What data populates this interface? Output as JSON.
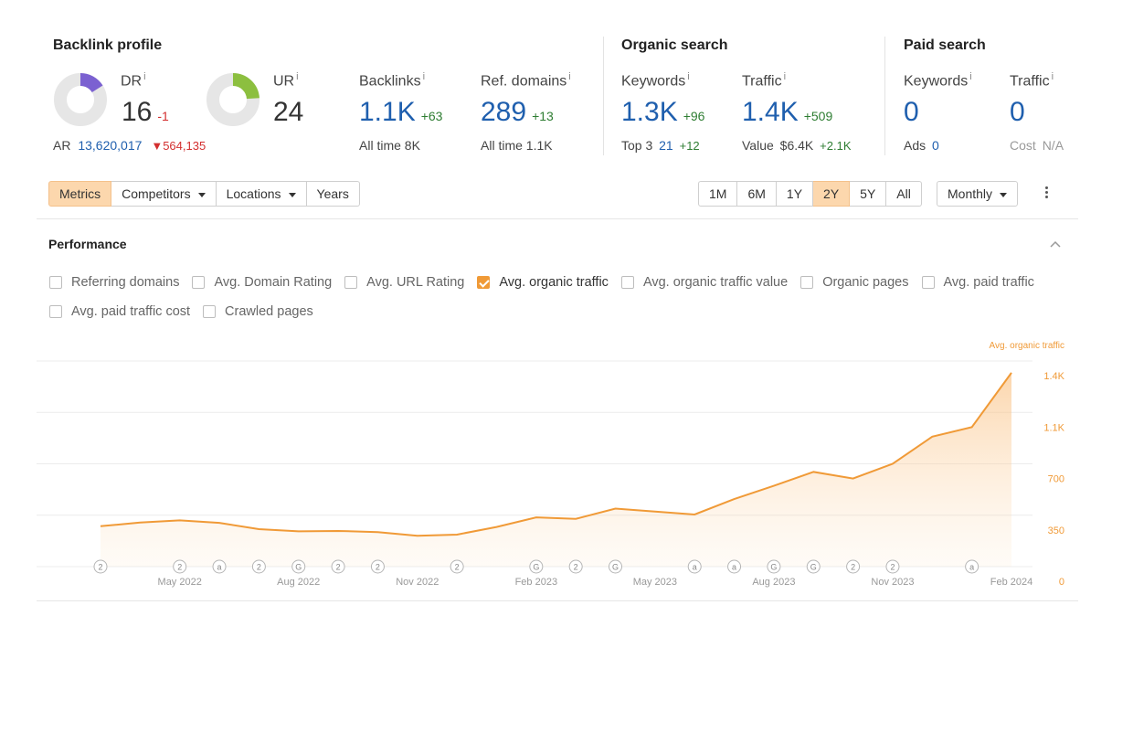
{
  "backlink_profile": {
    "title": "Backlink profile",
    "dr": {
      "label": "DR",
      "value": "16",
      "delta": "-1",
      "fill": 0.16
    },
    "ur": {
      "label": "UR",
      "value": "24",
      "fill": 0.24
    },
    "ar": {
      "label": "AR",
      "value": "13,620,017",
      "delta": "564,135"
    },
    "backlinks": {
      "label": "Backlinks",
      "value": "1.1K",
      "delta": "+63",
      "sub_label": "All time",
      "sub_value": "8K"
    },
    "ref_domains": {
      "label": "Ref. domains",
      "value": "289",
      "delta": "+13",
      "sub_label": "All time",
      "sub_value": "1.1K"
    }
  },
  "organic_search": {
    "title": "Organic search",
    "keywords": {
      "label": "Keywords",
      "value": "1.3K",
      "delta": "+96",
      "sub_label": "Top 3",
      "sub_value": "21",
      "sub_delta": "+12"
    },
    "traffic": {
      "label": "Traffic",
      "value": "1.4K",
      "delta": "+509",
      "sub_label": "Value",
      "sub_value": "$6.4K",
      "sub_delta": "+2.1K"
    }
  },
  "paid_search": {
    "title": "Paid search",
    "keywords": {
      "label": "Keywords",
      "value": "0",
      "sub_label": "Ads",
      "sub_value": "0"
    },
    "traffic": {
      "label": "Traffic",
      "value": "0",
      "sub_label": "Cost",
      "sub_value": "N/A"
    }
  },
  "info_mark": "i",
  "toolbar": {
    "tabs": [
      {
        "label": "Metrics",
        "active": true,
        "dropdown": false
      },
      {
        "label": "Competitors",
        "active": false,
        "dropdown": true
      },
      {
        "label": "Locations",
        "active": false,
        "dropdown": true
      },
      {
        "label": "Years",
        "active": false,
        "dropdown": false
      }
    ],
    "ranges": [
      {
        "label": "1M",
        "active": false
      },
      {
        "label": "6M",
        "active": false
      },
      {
        "label": "1Y",
        "active": false
      },
      {
        "label": "2Y",
        "active": true
      },
      {
        "label": "5Y",
        "active": false
      },
      {
        "label": "All",
        "active": false
      }
    ],
    "interval": "Monthly"
  },
  "performance": {
    "title": "Performance",
    "metrics_row1": [
      {
        "label": "Referring domains",
        "checked": false
      },
      {
        "label": "Avg. Domain Rating",
        "checked": false
      },
      {
        "label": "Avg. URL Rating",
        "checked": false
      },
      {
        "label": "Avg. organic traffic",
        "checked": true
      },
      {
        "label": "Avg. organic traffic value",
        "checked": false
      },
      {
        "label": "Organic pages",
        "checked": false
      },
      {
        "label": "Avg. paid traffic",
        "checked": false
      }
    ],
    "metrics_row2": [
      {
        "label": "Avg. paid traffic cost",
        "checked": false
      },
      {
        "label": "Crawled pages",
        "checked": false
      }
    ]
  },
  "colors": {
    "accent": "#f09a37",
    "blue": "#1f5fae",
    "green": "#2e7d32",
    "red": "#d32f2f",
    "dr_ring": "#7b61d1",
    "ur_ring": "#8cbf3f"
  },
  "chart_data": {
    "type": "area",
    "series": [
      {
        "name": "Avg. organic traffic",
        "values": [
          275,
          300,
          315,
          298,
          255,
          240,
          243,
          235,
          210,
          218,
          270,
          335,
          325,
          395,
          375,
          355,
          460,
          550,
          645,
          600,
          700,
          885,
          950,
          1320
        ]
      }
    ],
    "x_tick_labels": [
      "May 2022",
      "Aug 2022",
      "Nov 2022",
      "Feb 2023",
      "May 2023",
      "Aug 2023",
      "Nov 2023",
      "Feb 2024"
    ],
    "x_tick_index": [
      2,
      5,
      8,
      11,
      14,
      17,
      20,
      23
    ],
    "y_ticks": [
      {
        "value": 0,
        "label": "0"
      },
      {
        "value": 350,
        "label": "350"
      },
      {
        "value": 700,
        "label": "700"
      },
      {
        "value": 1050,
        "label": "1.1K"
      },
      {
        "value": 1400,
        "label": "1.4K"
      }
    ],
    "ylim": [
      0,
      1400
    ],
    "y_axis_label": "Avg. organic traffic",
    "grid": true,
    "annotations": [
      {
        "index": 0,
        "mark": "2"
      },
      {
        "index": 2,
        "mark": "2"
      },
      {
        "index": 3,
        "mark": "a"
      },
      {
        "index": 4,
        "mark": "2"
      },
      {
        "index": 5,
        "mark": "G"
      },
      {
        "index": 6,
        "mark": "2"
      },
      {
        "index": 7,
        "mark": "2"
      },
      {
        "index": 9,
        "mark": "2"
      },
      {
        "index": 11,
        "mark": "G"
      },
      {
        "index": 12,
        "mark": "2"
      },
      {
        "index": 13,
        "mark": "G"
      },
      {
        "index": 15,
        "mark": "a"
      },
      {
        "index": 16,
        "mark": "a"
      },
      {
        "index": 17,
        "mark": "G"
      },
      {
        "index": 18,
        "mark": "G"
      },
      {
        "index": 19,
        "mark": "2"
      },
      {
        "index": 20,
        "mark": "2"
      },
      {
        "index": 22,
        "mark": "a"
      }
    ]
  }
}
